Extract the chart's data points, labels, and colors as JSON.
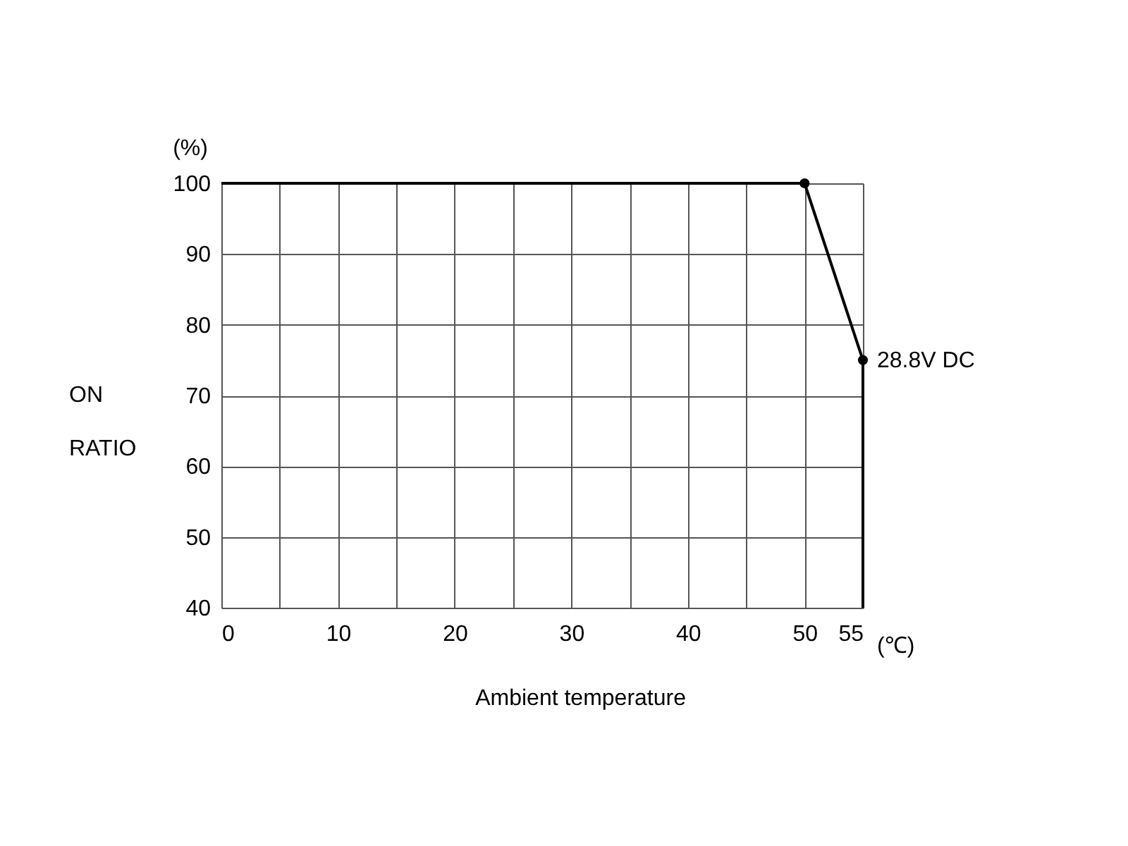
{
  "chart_data": {
    "type": "line",
    "xlabel": "Ambient temperature",
    "ylabel": "ON RATIO",
    "x": [
      0,
      50,
      55,
      55
    ],
    "series": [
      {
        "color": "#000000",
        "values": [
          100,
          100,
          75,
          40
        ]
      },
      {
        "type": "scatter",
        "color": "#000000",
        "x": [
          50,
          55
        ],
        "values": [
          100,
          75
        ]
      }
    ],
    "xlim": [
      0,
      55
    ],
    "ylim": [
      40,
      100
    ],
    "xticks": [
      0,
      {
        "value": 5,
        "label": null
      },
      10,
      {
        "value": 15,
        "label": null
      },
      20,
      {
        "value": 25,
        "label": null
      },
      30,
      {
        "value": 35,
        "label": null
      },
      40,
      {
        "value": 45,
        "label": null
      },
      50,
      55
    ],
    "yticks": [
      40,
      50,
      60,
      70,
      80,
      90,
      100
    ],
    "grid": true,
    "annotations": [
      {
        "text": "28.8V DC",
        "x": 55,
        "y": 75
      },
      "(%)",
      "(℃)"
    ]
  }
}
